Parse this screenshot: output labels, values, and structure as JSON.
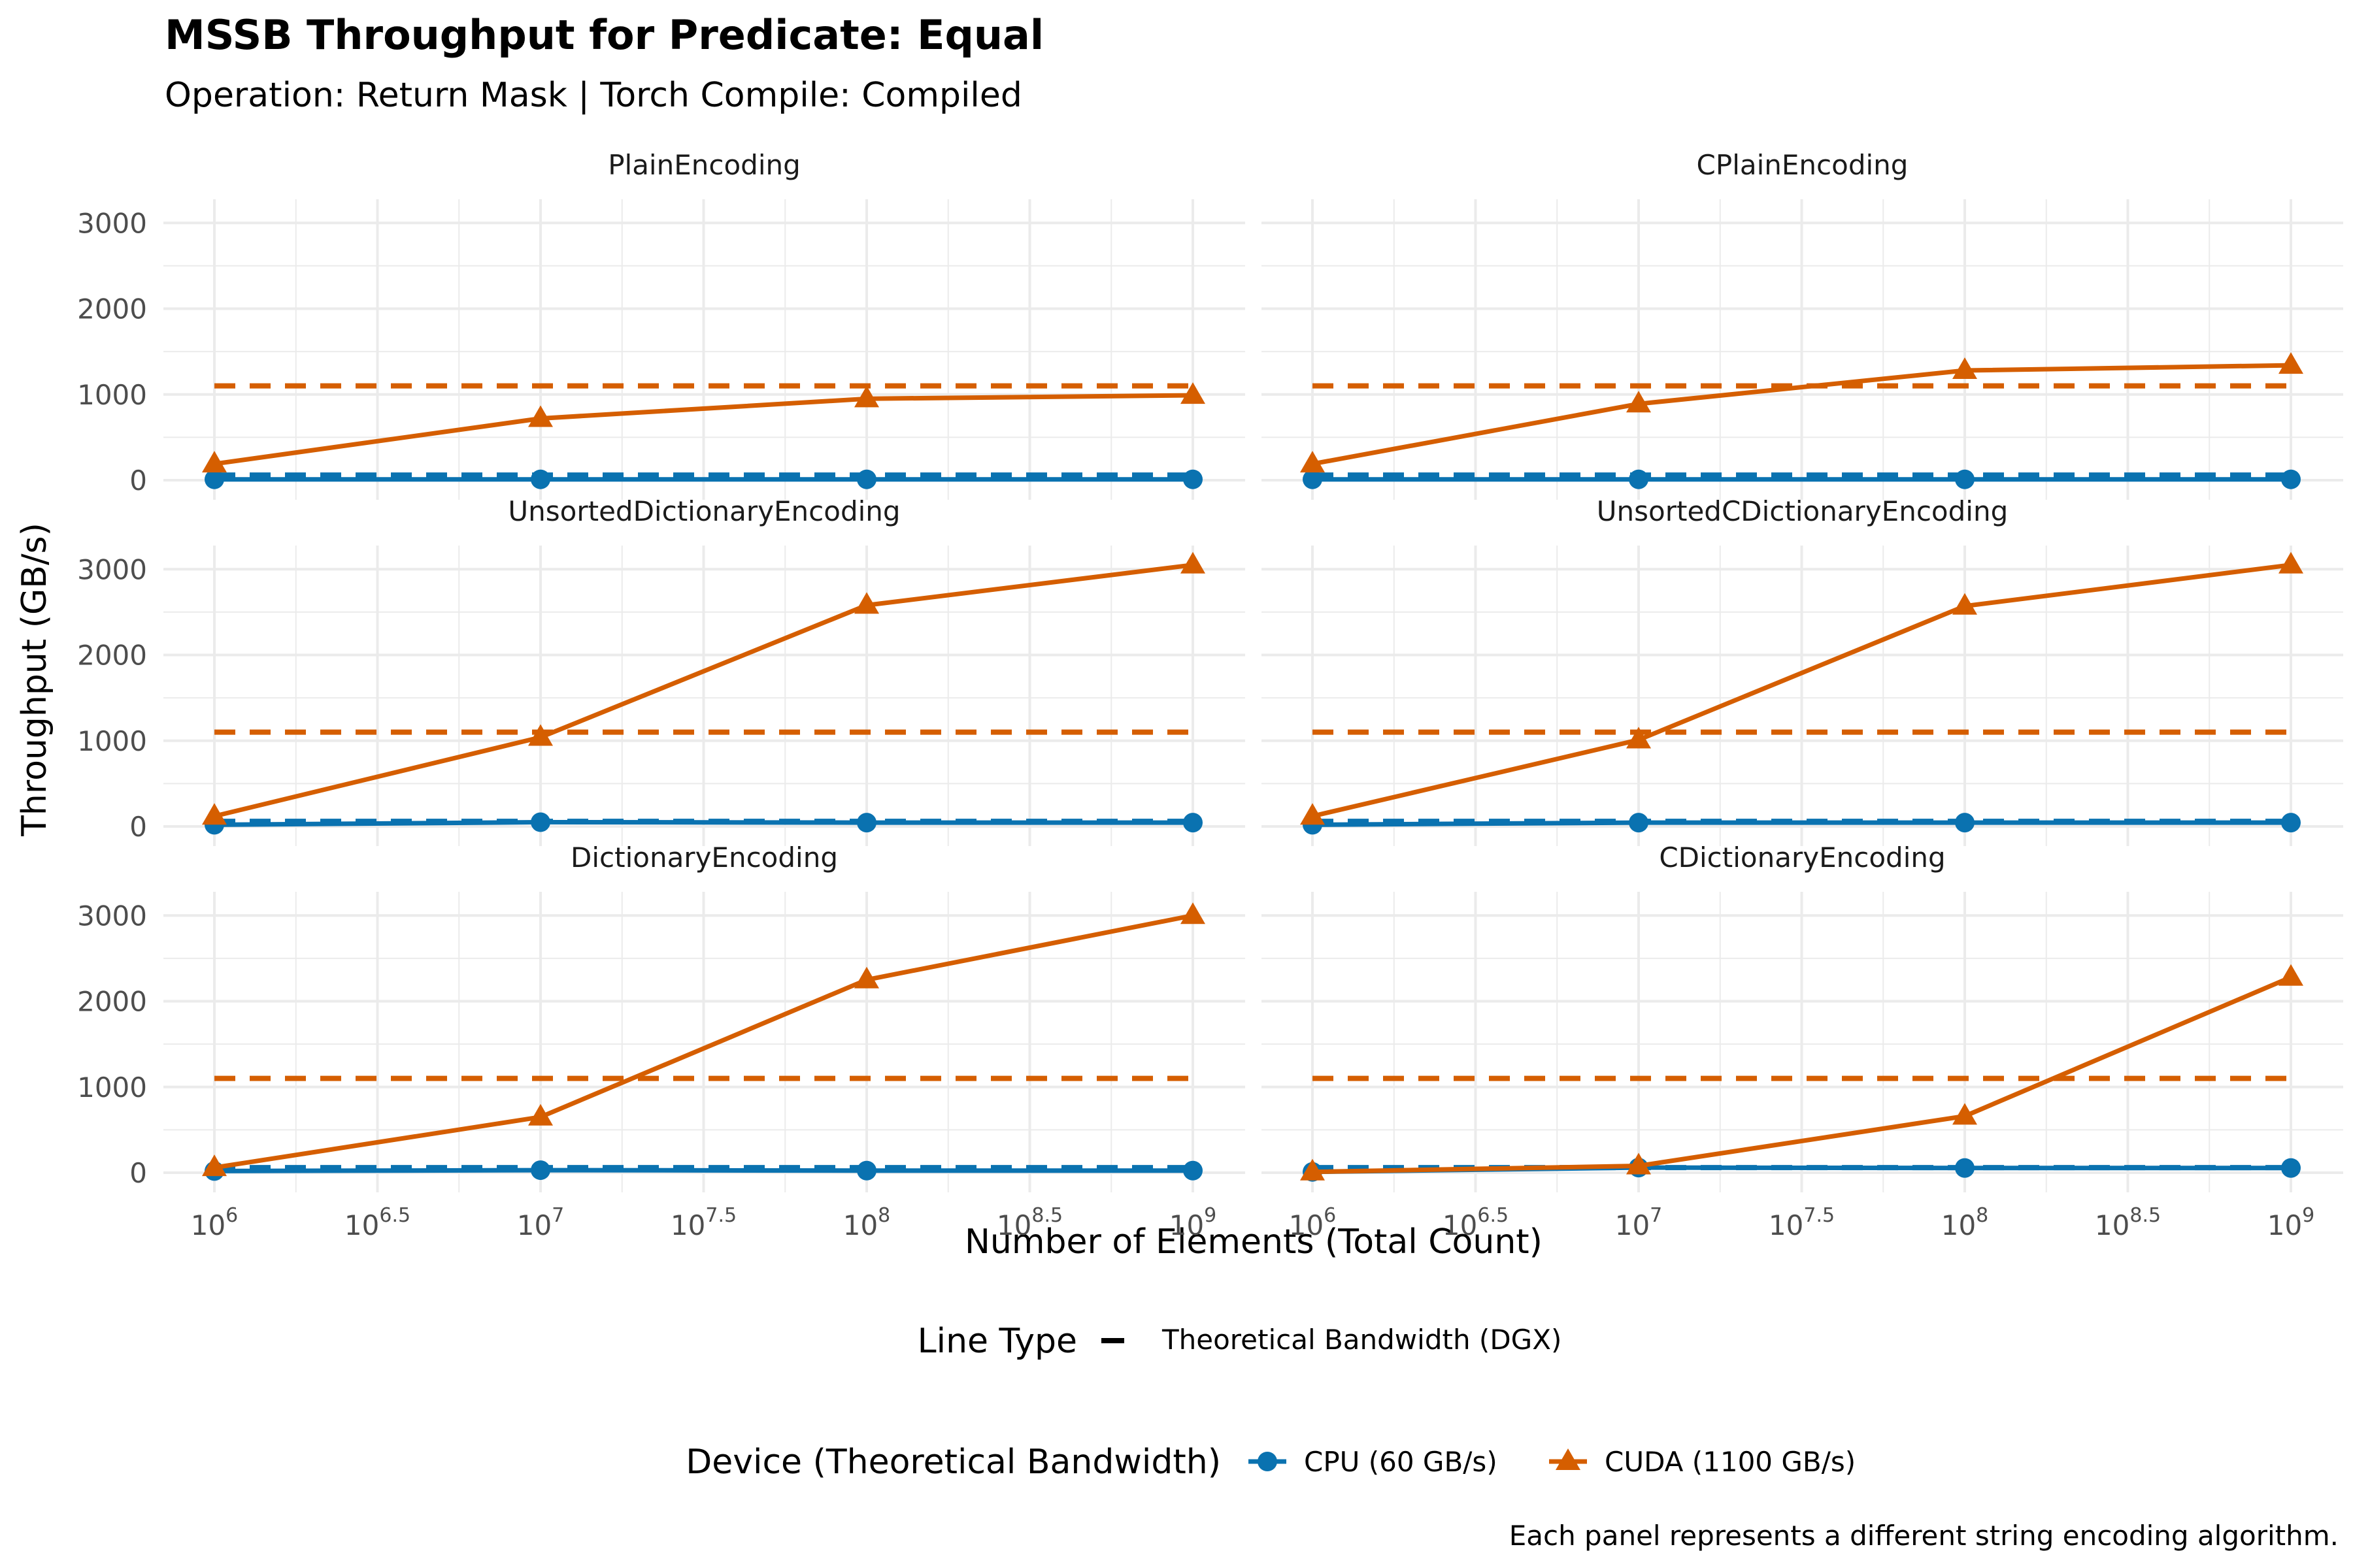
{
  "title": "MSSB Throughput for Predicate: Equal",
  "subtitle": "Operation: Return Mask | Torch Compile: Compiled",
  "caption": "Each panel represents a different string encoding algorithm.",
  "axes": {
    "xlabel": "Number of Elements (Total Count)",
    "ylabel": "Throughput (GB/s)",
    "x_scale": "log10",
    "x_ticks": [
      1000000,
      3162278,
      10000000,
      31622777,
      100000000,
      316227766,
      1000000000
    ],
    "x_tick_base": "10",
    "x_tick_exponents": [
      "6",
      "6.5",
      "7",
      "7.5",
      "8",
      "8.5",
      "9"
    ],
    "y_ticks": [
      "0",
      "1000",
      "2000",
      "3000"
    ],
    "y_range": [
      0,
      3200
    ]
  },
  "legend": {
    "linetype_title": "Line Type",
    "linetype_label": "Theoretical Bandwidth (DGX)",
    "device_title": "Device (Theoretical Bandwidth)",
    "placement": "bottom"
  },
  "colors": {
    "cpu": "#0a72b0",
    "cuda": "#d55e00",
    "grid": "#ebebeb"
  },
  "chart_data": {
    "type": "line",
    "x": [
      1000000,
      10000000,
      100000000,
      1000000000
    ],
    "theoretical_bandwidth": {
      "CPU (60 GB/s)": 60,
      "CUDA (1100 GB/s)": 1100
    },
    "series_names": [
      "CPU (60 GB/s)",
      "CUDA (1100 GB/s)"
    ],
    "panels": [
      {
        "name": "PlainEncoding",
        "series": [
          {
            "name": "CPU (60 GB/s)",
            "values": [
              10,
              10,
              10,
              10
            ]
          },
          {
            "name": "CUDA (1100 GB/s)",
            "values": [
              190,
              720,
              950,
              990
            ]
          }
        ]
      },
      {
        "name": "CPlainEncoding",
        "series": [
          {
            "name": "CPU (60 GB/s)",
            "values": [
              10,
              10,
              10,
              10
            ]
          },
          {
            "name": "CUDA (1100 GB/s)",
            "values": [
              190,
              890,
              1280,
              1340
            ]
          }
        ]
      },
      {
        "name": "UnsortedDictionaryEncoding",
        "series": [
          {
            "name": "CPU (60 GB/s)",
            "values": [
              20,
              50,
              45,
              45
            ]
          },
          {
            "name": "CUDA (1100 GB/s)",
            "values": [
              120,
              1040,
              2580,
              3050
            ]
          }
        ]
      },
      {
        "name": "UnsortedCDictionaryEncoding",
        "series": [
          {
            "name": "CPU (60 GB/s)",
            "values": [
              20,
              45,
              45,
              45
            ]
          },
          {
            "name": "CUDA (1100 GB/s)",
            "values": [
              120,
              1010,
              2570,
              3050
            ]
          }
        ]
      },
      {
        "name": "DictionaryEncoding",
        "series": [
          {
            "name": "CPU (60 GB/s)",
            "values": [
              20,
              30,
              25,
              25
            ]
          },
          {
            "name": "CUDA (1100 GB/s)",
            "values": [
              60,
              650,
              2250,
              3000
            ]
          }
        ]
      },
      {
        "name": "CDictionaryEncoding",
        "series": [
          {
            "name": "CPU (60 GB/s)",
            "values": [
              10,
              60,
              55,
              55
            ]
          },
          {
            "name": "CUDA (1100 GB/s)",
            "values": [
              10,
              80,
              660,
              2280
            ]
          }
        ]
      }
    ]
  }
}
